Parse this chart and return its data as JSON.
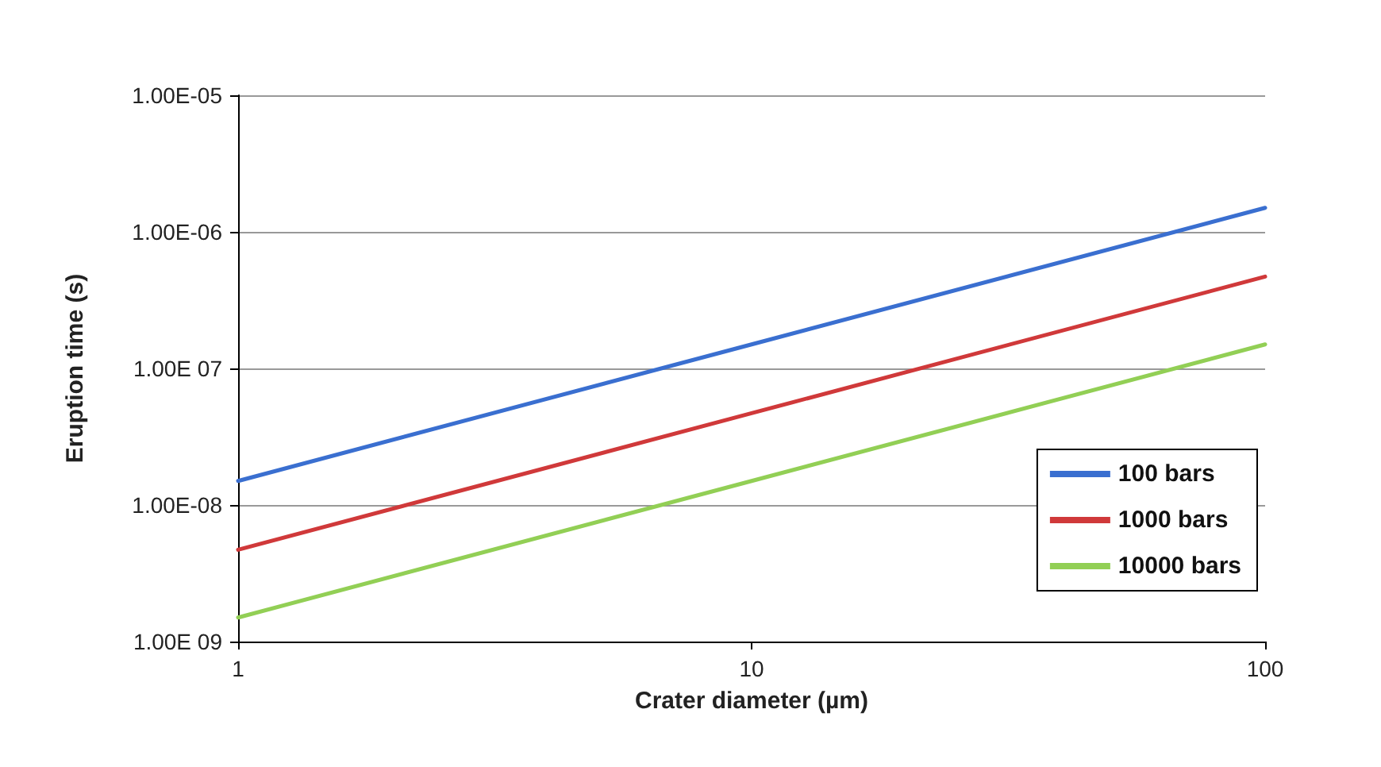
{
  "chart_data": {
    "type": "line",
    "xlabel": "Crater diameter (µm)",
    "ylabel": "Eruption time (s)",
    "log": "xy",
    "grid": "y",
    "legend": "right",
    "marker": "none",
    "line_style": "solid",
    "x": [
      1,
      10,
      100
    ],
    "xlim": [
      1,
      100
    ],
    "xticks": [
      1,
      10,
      100
    ],
    "ylim": [
      1e-09,
      1e-05
    ],
    "yticks": [
      {
        "value": 1e-09,
        "label": "1.00E 09"
      },
      {
        "value": 1e-08,
        "label": "1.00E-08"
      },
      {
        "value": 1e-07,
        "label": "1.00E 07"
      },
      {
        "value": 1e-06,
        "label": "1.00E-06"
      },
      {
        "value": 1e-05,
        "label": "1.00E-05"
      }
    ],
    "series": [
      {
        "name": "100 bars",
        "color": "#3a6fd0",
        "values": [
          1.5e-08,
          1.5e-07,
          1.5e-06
        ]
      },
      {
        "name": "1000 bars",
        "color": "#d0393a",
        "values": [
          4.7e-09,
          4.7e-08,
          4.7e-07
        ]
      },
      {
        "name": "10000 bars",
        "color": "#92cf55",
        "values": [
          1.5e-09,
          1.5e-08,
          1.5e-07
        ]
      }
    ]
  }
}
